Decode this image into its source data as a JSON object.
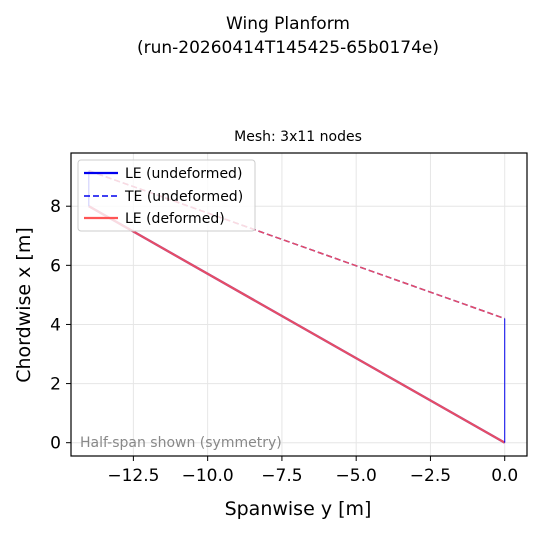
{
  "figure": {
    "suptitle_line1": "Wing Planform",
    "suptitle_line2": "(run-20260414T145425-65b0174e)"
  },
  "chart_data": {
    "type": "line",
    "title": "Mesh: 3x11 nodes",
    "xlabel": "Spanwise y  [m]",
    "ylabel": "Chordwise x  [m]",
    "xlim": [
      -14.6,
      0.75
    ],
    "ylim": [
      -0.45,
      9.8
    ],
    "x_ticks": [
      -12.5,
      -10.0,
      -7.5,
      -5.0,
      -2.5,
      0.0
    ],
    "x_tick_labels": [
      "−12.5",
      "−10.0",
      "−7.5",
      "−5.0",
      "−2.5",
      "0.0"
    ],
    "y_ticks": [
      0,
      2,
      4,
      6,
      8
    ],
    "y_tick_labels": [
      "0",
      "2",
      "4",
      "6",
      "8"
    ],
    "grid": true,
    "legend_position": "top-left",
    "annotation": "Half-span shown (symmetry)",
    "series": [
      {
        "name": "LE (undeformed)",
        "color": "#0000ee",
        "style": "solid",
        "x": [
          -14.0,
          0.0
        ],
        "y": [
          8.0,
          0.0
        ]
      },
      {
        "name": "TE (undeformed)",
        "color": "#0000ee",
        "style": "dashed",
        "x": [
          -14.0,
          0.0
        ],
        "y": [
          9.2,
          4.2
        ]
      },
      {
        "name": "LE (deformed)",
        "color": "#ff5555",
        "style": "solid",
        "x": [
          -14.0,
          0.0
        ],
        "y": [
          8.0,
          0.0
        ]
      },
      {
        "name": "",
        "color": "#ff5555",
        "style": "dashed",
        "x": [
          -14.0,
          0.0
        ],
        "y": [
          9.2,
          4.2
        ]
      },
      {
        "name": "",
        "color": "#0000ee",
        "style": "thin",
        "x": [
          0.0,
          0.0
        ],
        "y": [
          0.0,
          4.2
        ]
      },
      {
        "name": "",
        "color": "#0000ee",
        "style": "thin",
        "x": [
          -14.0,
          -14.0
        ],
        "y": [
          8.0,
          9.2
        ]
      }
    ]
  }
}
